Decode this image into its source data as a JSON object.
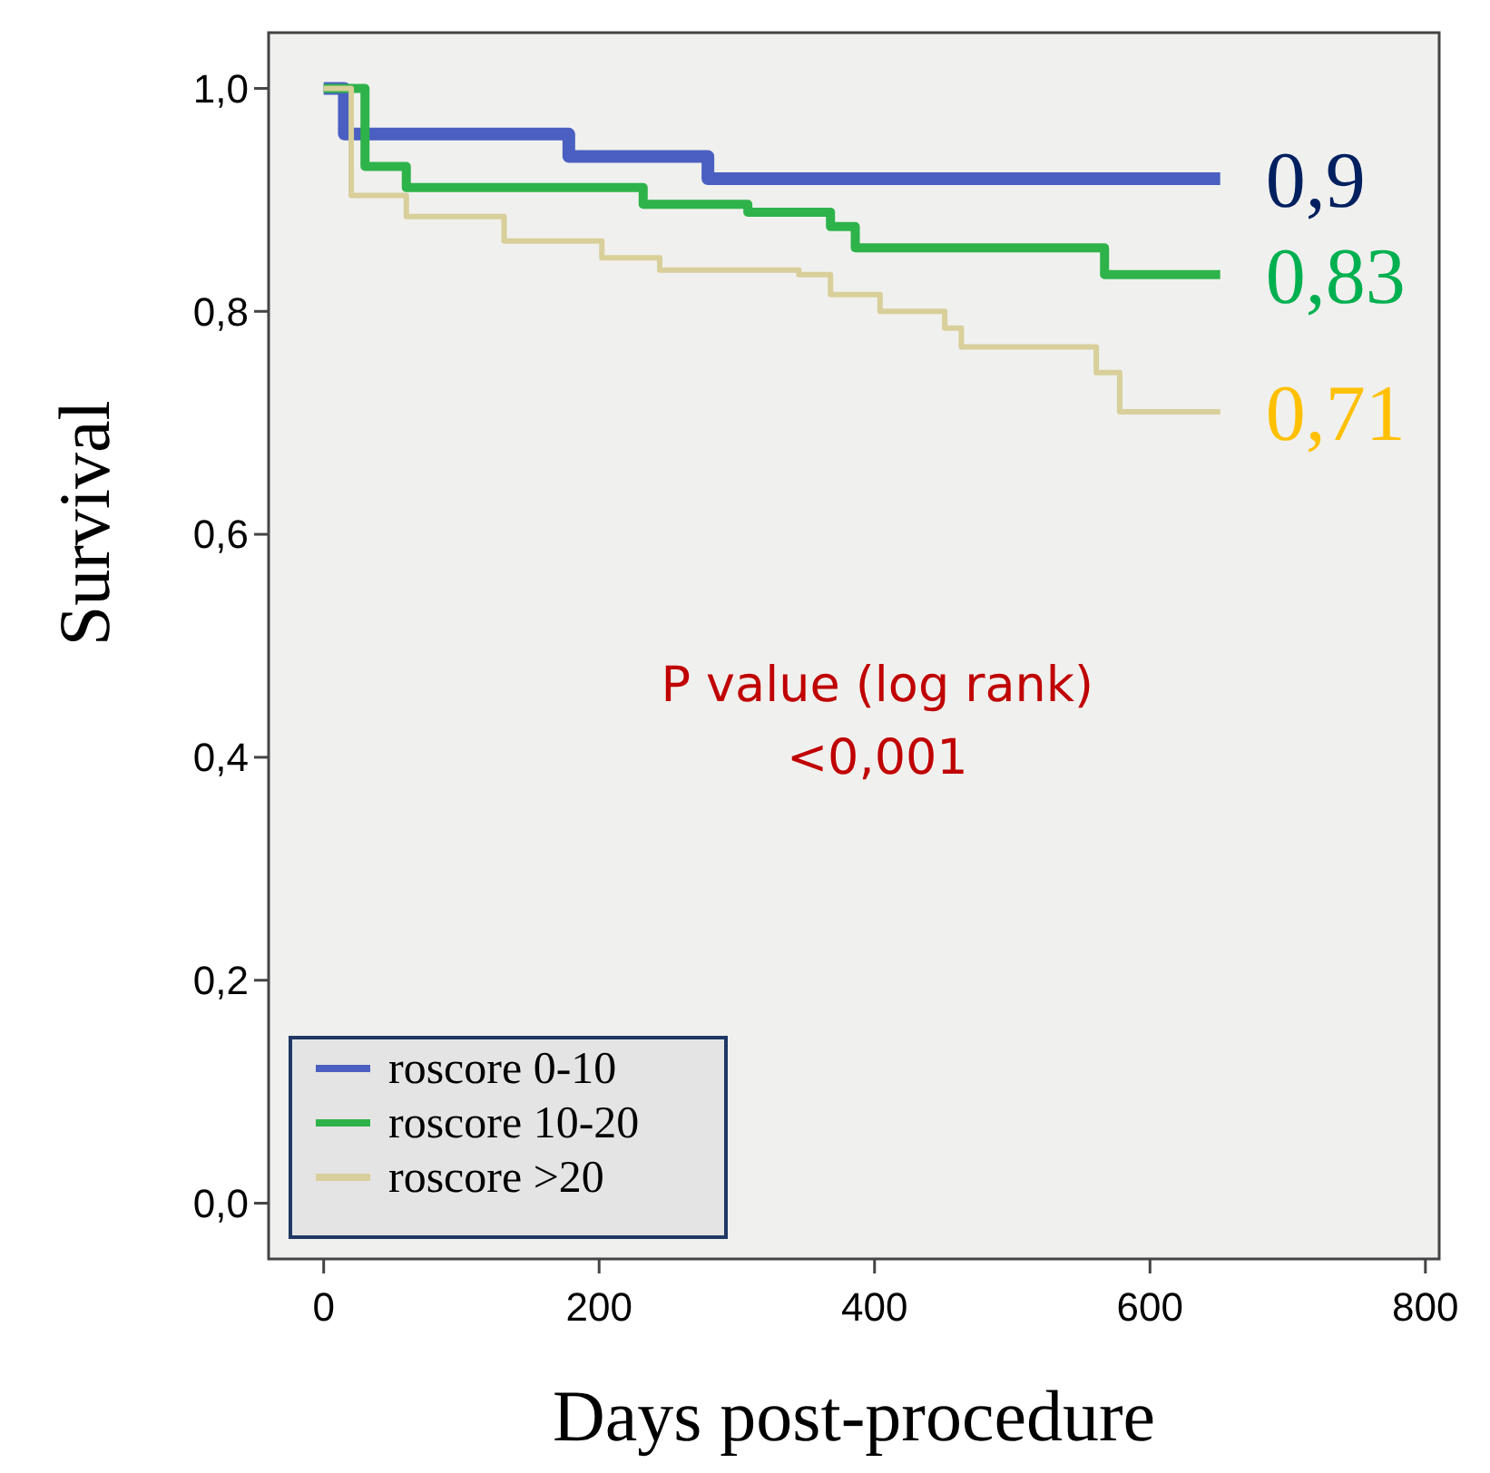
{
  "chart_data": {
    "type": "step",
    "xlabel": "Days post-procedure",
    "ylabel": "Survival",
    "xlim": [
      -40,
      810
    ],
    "xticks": [
      0,
      200,
      400,
      600,
      800
    ],
    "ylim": [
      -0.05,
      1.05
    ],
    "yticks": [
      {
        "value": 0,
        "label": "0,0"
      },
      {
        "value": 0.2,
        "label": "0,2"
      },
      {
        "value": 0.4,
        "label": "0,4"
      },
      {
        "value": 0.6,
        "label": "0,6"
      },
      {
        "value": 0.8,
        "label": "0,8"
      },
      {
        "value": 1,
        "label": "1,0"
      }
    ],
    "legend": "bottom left",
    "grid": false,
    "series": [
      {
        "name": "roscore 0-10",
        "color": "#4a5fc1",
        "x": [
          0,
          15,
          178,
          279,
          651
        ],
        "values": [
          1,
          0.959,
          0.939,
          0.919,
          0.919
        ]
      },
      {
        "name": "roscore 10-20",
        "color": "#2eb34a",
        "x": [
          0,
          30,
          60,
          232,
          308,
          368,
          386,
          567,
          651
        ],
        "values": [
          1,
          0.93,
          0.911,
          0.896,
          0.889,
          0.876,
          0.857,
          0.833,
          0.833
        ]
      },
      {
        "name": "roscore >20",
        "color": "#d8cf9a",
        "x": [
          0,
          20,
          60,
          131,
          202,
          244,
          345,
          368,
          404,
          451,
          463,
          561,
          578,
          651
        ],
        "values": [
          1,
          0.904,
          0.885,
          0.863,
          0.848,
          0.837,
          0.833,
          0.815,
          0.8,
          0.785,
          0.768,
          0.745,
          0.71,
          0.71
        ]
      }
    ],
    "annotations": [
      "0,9",
      "0,83",
      "0,71",
      "P value (log rank)\n<0,001"
    ]
  }
}
